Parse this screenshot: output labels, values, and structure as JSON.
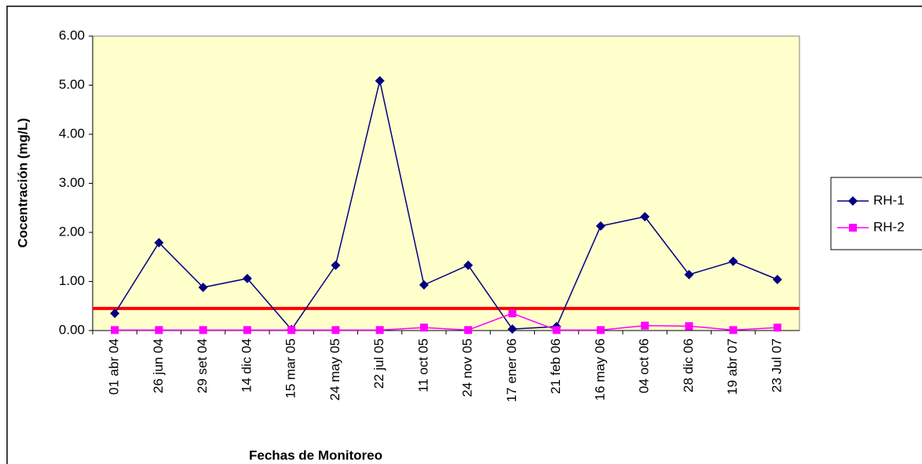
{
  "chart_data": {
    "type": "line",
    "x_label": "Fechas de Monitoreo",
    "y_label": "Cocentración (mg/L)",
    "categories": [
      "01 abr 04",
      "26 jun 04",
      "29 set 04",
      "14 dic 04",
      "15 mar 05",
      "24 may 05",
      "22 jul 05",
      "11 oct 05",
      "24 nov 05",
      "17 ener 06",
      "21 feb 06",
      "16 may 06",
      "04 oct 06",
      "28 dic 06",
      "19 abr 07",
      "23 Jul 07"
    ],
    "series": [
      {
        "name": "RH-1",
        "color": "#000080",
        "marker": "diamond",
        "values": [
          0.35,
          1.79,
          0.88,
          1.06,
          0.02,
          1.33,
          5.09,
          0.93,
          1.33,
          0.03,
          0.08,
          2.13,
          2.32,
          1.14,
          1.41,
          1.04
        ]
      },
      {
        "name": "RH-2",
        "color": "#ff00ff",
        "marker": "square",
        "values": [
          0.01,
          0.01,
          0.01,
          0.01,
          0.01,
          0.01,
          0.01,
          0.06,
          0.01,
          0.35,
          0.01,
          0.01,
          0.1,
          0.09,
          0.01,
          0.06
        ]
      }
    ],
    "reference_line": {
      "value": 0.45,
      "color": "#ff0000"
    },
    "ylim": [
      0,
      6
    ],
    "yticks": [
      {
        "value": 0,
        "label": "0.00"
      },
      {
        "value": 1,
        "label": "1.00"
      },
      {
        "value": 2,
        "label": "2.00"
      },
      {
        "value": 3,
        "label": "3.00"
      },
      {
        "value": 4,
        "label": "4.00"
      },
      {
        "value": 5,
        "label": "5.00"
      },
      {
        "value": 6,
        "label": "6.00"
      }
    ],
    "background": "#ffffcc",
    "legend": "right"
  }
}
